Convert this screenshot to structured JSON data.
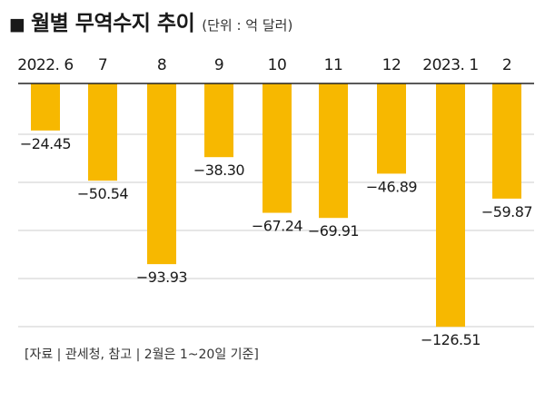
{
  "header": {
    "marker": "■",
    "title": "월별 무역수지 추이",
    "unit": "(단위 : 억 달러)"
  },
  "source": "[자료 | 관세청, 참고 | 2월은 1~20일 기준]",
  "colors": {
    "bar": "#F7B800",
    "grid": "#cccccc",
    "axis": "#222222",
    "text": "#1a1a1a"
  },
  "chart_data": {
    "type": "bar",
    "categories": [
      "2022. 6",
      "7",
      "8",
      "9",
      "10",
      "11",
      "12",
      "2023. 1",
      "2"
    ],
    "values": [
      -24.45,
      -50.54,
      -93.93,
      -38.3,
      -67.24,
      -69.91,
      -46.89,
      -126.51,
      -59.87
    ],
    "data_labels": [
      "−24.45",
      "−50.54",
      "−93.93",
      "−38.30",
      "−67.24",
      "−69.91",
      "−46.89",
      "−126.51",
      "−59.87"
    ],
    "title": "월별 무역수지 추이",
    "unit": "(단위 : 억 달러)",
    "ylim": [
      -130,
      0
    ],
    "category_labels_position": "top",
    "grid": true
  }
}
